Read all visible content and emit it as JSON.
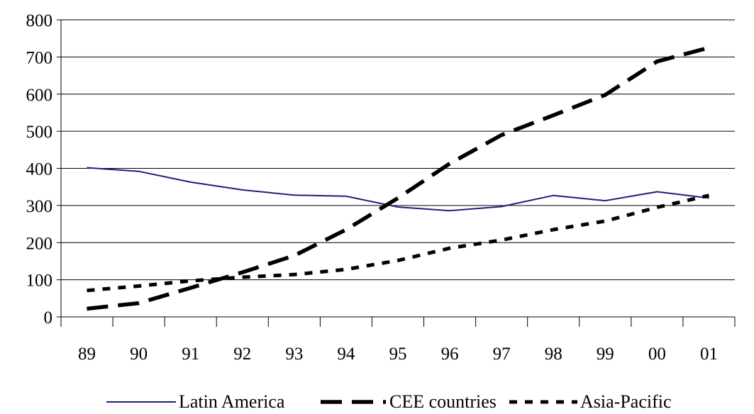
{
  "chart_data": {
    "type": "line",
    "title": "",
    "xlabel": "",
    "ylabel": "",
    "categories": [
      "89",
      "90",
      "91",
      "92",
      "93",
      "94",
      "95",
      "96",
      "97",
      "98",
      "99",
      "00",
      "01"
    ],
    "ylim": [
      0,
      800
    ],
    "yticks": [
      0,
      100,
      200,
      300,
      400,
      500,
      600,
      700,
      800
    ],
    "grid": "horizontal",
    "legend_position": "bottom",
    "series": [
      {
        "name": "Latin America",
        "style": "solid",
        "color": "#1f1f7a",
        "values": [
          402,
          392,
          363,
          342,
          328,
          325,
          296,
          286,
          297,
          327,
          313,
          337,
          320
        ]
      },
      {
        "name": "CEE countries",
        "style": "long-dash",
        "color": "#000000",
        "values": [
          22,
          37,
          78,
          120,
          165,
          235,
          320,
          413,
          490,
          543,
          598,
          688,
          725
        ]
      },
      {
        "name": "Asia-Pacific",
        "style": "short-dash",
        "color": "#000000",
        "values": [
          71,
          83,
          97,
          107,
          114,
          128,
          152,
          185,
          207,
          235,
          258,
          295,
          327
        ]
      }
    ]
  }
}
